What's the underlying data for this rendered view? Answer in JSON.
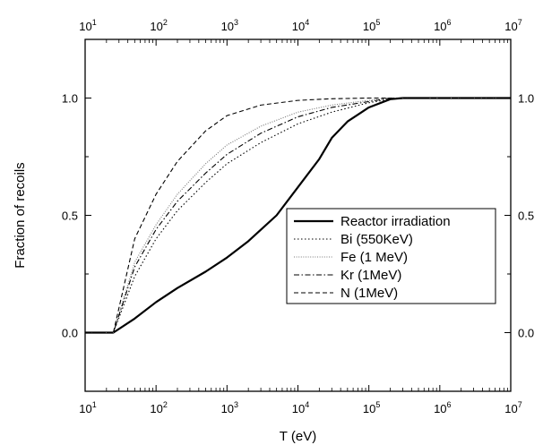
{
  "chart_data": {
    "type": "line",
    "title": "",
    "xlabel": "T (eV)",
    "ylabel": "Fraction of recoils",
    "x_scale": "log",
    "xlim": [
      10,
      10000000
    ],
    "ylim": [
      -0.25,
      1.25
    ],
    "x_ticks": [
      {
        "value": 10,
        "base": "10",
        "exp": "1"
      },
      {
        "value": 100,
        "base": "10",
        "exp": "2"
      },
      {
        "value": 1000,
        "base": "10",
        "exp": "3"
      },
      {
        "value": 10000,
        "base": "10",
        "exp": "4"
      },
      {
        "value": 100000,
        "base": "10",
        "exp": "5"
      },
      {
        "value": 1000000,
        "base": "10",
        "exp": "6"
      },
      {
        "value": 10000000,
        "base": "10",
        "exp": "7"
      }
    ],
    "y_ticks": [
      {
        "value": 0.0,
        "label": "0.0"
      },
      {
        "value": 0.5,
        "label": "0.5"
      },
      {
        "value": 1.0,
        "label": "1.0"
      }
    ],
    "grid": false,
    "legend_position": "center-right",
    "series": [
      {
        "name": "Reactor irradiation",
        "style": "solid",
        "color": "#000000",
        "points": [
          [
            10,
            0
          ],
          [
            25,
            0
          ],
          [
            50,
            0.06
          ],
          [
            100,
            0.13
          ],
          [
            200,
            0.19
          ],
          [
            500,
            0.26
          ],
          [
            1000,
            0.32
          ],
          [
            2000,
            0.39
          ],
          [
            5000,
            0.5
          ],
          [
            10000,
            0.62
          ],
          [
            20000,
            0.74
          ],
          [
            30000,
            0.83
          ],
          [
            50000,
            0.9
          ],
          [
            100000,
            0.96
          ],
          [
            200000,
            0.995
          ],
          [
            300000,
            1.0
          ],
          [
            10000000,
            1.0
          ]
        ]
      },
      {
        "name": "Bi (550KeV)",
        "style": "dotted",
        "color": "#000000",
        "points": [
          [
            10,
            0
          ],
          [
            25,
            0
          ],
          [
            50,
            0.24
          ],
          [
            100,
            0.4
          ],
          [
            200,
            0.52
          ],
          [
            500,
            0.64
          ],
          [
            1000,
            0.72
          ],
          [
            3000,
            0.81
          ],
          [
            10000,
            0.89
          ],
          [
            30000,
            0.94
          ],
          [
            100000,
            0.98
          ],
          [
            200000,
            0.995
          ],
          [
            400000,
            1.0
          ],
          [
            10000000,
            1.0
          ]
        ]
      },
      {
        "name": "Fe (1 MeV)",
        "style": "dotted-gray",
        "color": "#777777",
        "points": [
          [
            10,
            0
          ],
          [
            25,
            0
          ],
          [
            50,
            0.3
          ],
          [
            100,
            0.46
          ],
          [
            200,
            0.59
          ],
          [
            500,
            0.72
          ],
          [
            1000,
            0.8
          ],
          [
            3000,
            0.88
          ],
          [
            10000,
            0.94
          ],
          [
            30000,
            0.97
          ],
          [
            100000,
            0.99
          ],
          [
            200000,
            1.0
          ],
          [
            10000000,
            1.0
          ]
        ]
      },
      {
        "name": "Kr (1MeV)",
        "style": "dashdot",
        "color": "#000000",
        "points": [
          [
            10,
            0
          ],
          [
            25,
            0
          ],
          [
            50,
            0.28
          ],
          [
            100,
            0.44
          ],
          [
            200,
            0.56
          ],
          [
            500,
            0.68
          ],
          [
            1000,
            0.76
          ],
          [
            3000,
            0.85
          ],
          [
            10000,
            0.92
          ],
          [
            30000,
            0.96
          ],
          [
            100000,
            0.985
          ],
          [
            200000,
            1.0
          ],
          [
            10000000,
            1.0
          ]
        ]
      },
      {
        "name": "N (1MeV)",
        "style": "dashed",
        "color": "#000000",
        "points": [
          [
            10,
            0
          ],
          [
            25,
            0
          ],
          [
            50,
            0.4
          ],
          [
            100,
            0.59
          ],
          [
            200,
            0.73
          ],
          [
            500,
            0.86
          ],
          [
            1000,
            0.925
          ],
          [
            3000,
            0.97
          ],
          [
            10000,
            0.99
          ],
          [
            30000,
            0.997
          ],
          [
            100000,
            1.0
          ],
          [
            10000000,
            1.0
          ]
        ]
      }
    ]
  }
}
